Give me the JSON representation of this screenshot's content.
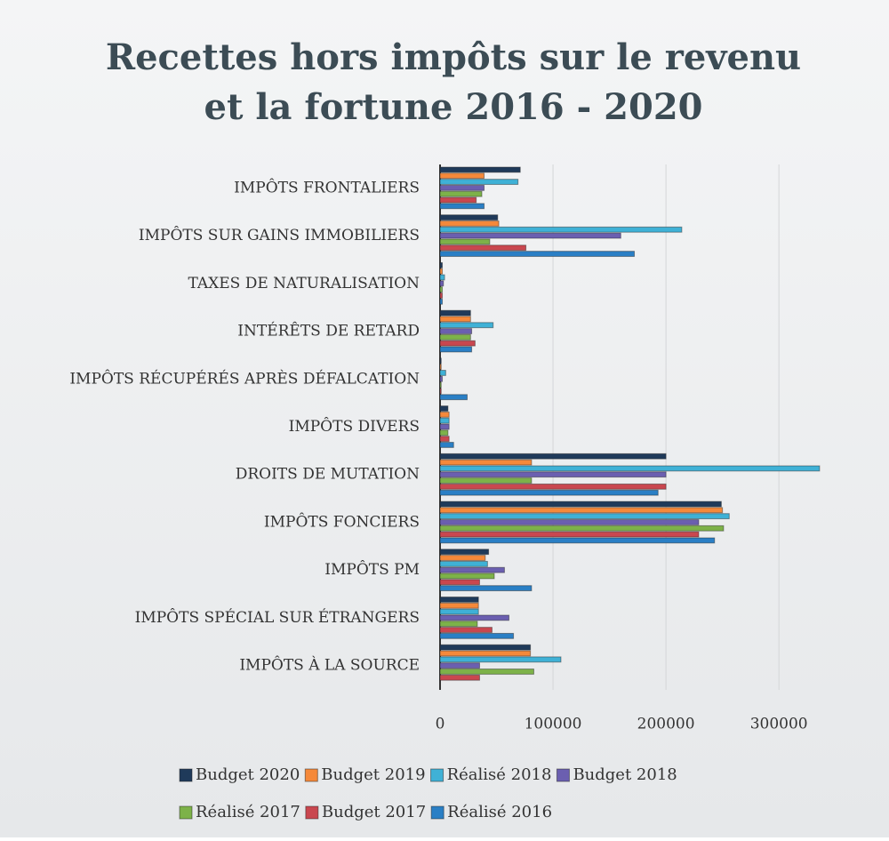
{
  "chart_data": {
    "type": "barh",
    "title": [
      "Recettes hors impôts sur le revenu",
      "et la fortune 2016 - 2020"
    ],
    "categories": [
      "IMPÔTS FRONTALIERS",
      "IMPÔTS SUR GAINS IMMOBILIERS",
      "TAXES DE NATURALISATION",
      "INTÉRÊTS DE RETARD",
      "IMPÔTS RÉCUPÉRÉS APRÈS DÉFALCATION",
      "IMPÔTS DIVERS",
      "DROITS DE MUTATION",
      "IMPÔTS FONCIERS",
      "IMPÔTS PM",
      "IMPÔTS SPÉCIAL SUR ÉTRANGERS",
      "IMPÔTS À LA SOURCE"
    ],
    "series": [
      {
        "name": "Budget 2020",
        "color": "#1f3a5a",
        "values": [
          71000,
          51000,
          2000,
          27000,
          1000,
          7000,
          200000,
          249000,
          43000,
          34000,
          80000
        ]
      },
      {
        "name": "Budget 2019",
        "color": "#f5893a",
        "values": [
          39000,
          52000,
          2000,
          27000,
          1000,
          8000,
          81000,
          250000,
          40000,
          34000,
          80000
        ]
      },
      {
        "name": "Réalisé 2018",
        "color": "#3fb1d6",
        "values": [
          69000,
          214000,
          4000,
          47000,
          5000,
          8000,
          336000,
          256000,
          42000,
          34000,
          107000
        ]
      },
      {
        "name": "Budget 2018",
        "color": "#6b5fb0",
        "values": [
          39000,
          160000,
          3000,
          28000,
          2000,
          8000,
          200000,
          229000,
          57000,
          61000,
          35000
        ]
      },
      {
        "name": "Réalisé 2017",
        "color": "#7db249",
        "values": [
          37000,
          44000,
          2000,
          27000,
          1000,
          7000,
          81000,
          251000,
          48000,
          33000,
          83000
        ]
      },
      {
        "name": "Budget 2017",
        "color": "#c9474f",
        "values": [
          32000,
          76000,
          2000,
          31000,
          1000,
          8000,
          200000,
          229000,
          35000,
          46000,
          35000
        ]
      },
      {
        "name": "Réalisé 2016",
        "color": "#2a7fc5",
        "values": [
          39000,
          172000,
          2000,
          28000,
          24000,
          12000,
          193000,
          243000,
          81000,
          65000,
          0
        ]
      }
    ],
    "xlim": [
      0,
      340000
    ],
    "xticks": [
      0,
      100000,
      200000,
      300000
    ],
    "grid": true
  }
}
